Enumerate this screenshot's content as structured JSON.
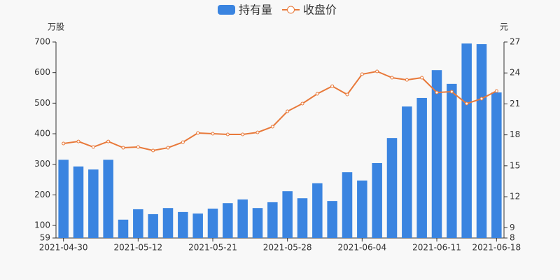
{
  "chart_data": {
    "type": "bar_line",
    "y_label": "万股",
    "y2_label": "元",
    "categories": [
      "2021-04-30",
      null,
      null,
      null,
      null,
      "2021-05-12",
      null,
      null,
      null,
      null,
      "2021-05-21",
      null,
      null,
      null,
      null,
      "2021-05-28",
      null,
      null,
      null,
      null,
      "2021-06-04",
      null,
      null,
      null,
      null,
      "2021-06-11",
      null,
      null,
      null,
      "2021-06-18"
    ],
    "series": [
      {
        "name": "持有量",
        "type": "bar",
        "color": "#3a84e0",
        "values": [
          315,
          293,
          283,
          315,
          119,
          153,
          137,
          157,
          144,
          139,
          155,
          173,
          185,
          157,
          176,
          212,
          189,
          238,
          180,
          274,
          247,
          304,
          386,
          489,
          517,
          608,
          563,
          695,
          693,
          535
        ]
      },
      {
        "name": "收盘价",
        "type": "line",
        "axis": "y2",
        "color": "#e8793a",
        "values": [
          17.16,
          17.36,
          16.82,
          17.36,
          16.75,
          16.82,
          16.48,
          16.75,
          17.29,
          18.18,
          18.11,
          18.04,
          18.04,
          18.24,
          18.79,
          20.28,
          21.03,
          21.98,
          22.72,
          21.91,
          23.88,
          24.15,
          23.54,
          23.33,
          23.54,
          22.11,
          22.18,
          21.03,
          21.5,
          22.25
        ]
      }
    ],
    "ylim": [
      59,
      700
    ],
    "yticks": [
      59,
      100,
      200,
      300,
      400,
      500,
      600,
      700
    ],
    "y2lim": [
      8,
      27
    ],
    "y2ticks": [
      8,
      9,
      12,
      15,
      18,
      21,
      24,
      27
    ]
  }
}
